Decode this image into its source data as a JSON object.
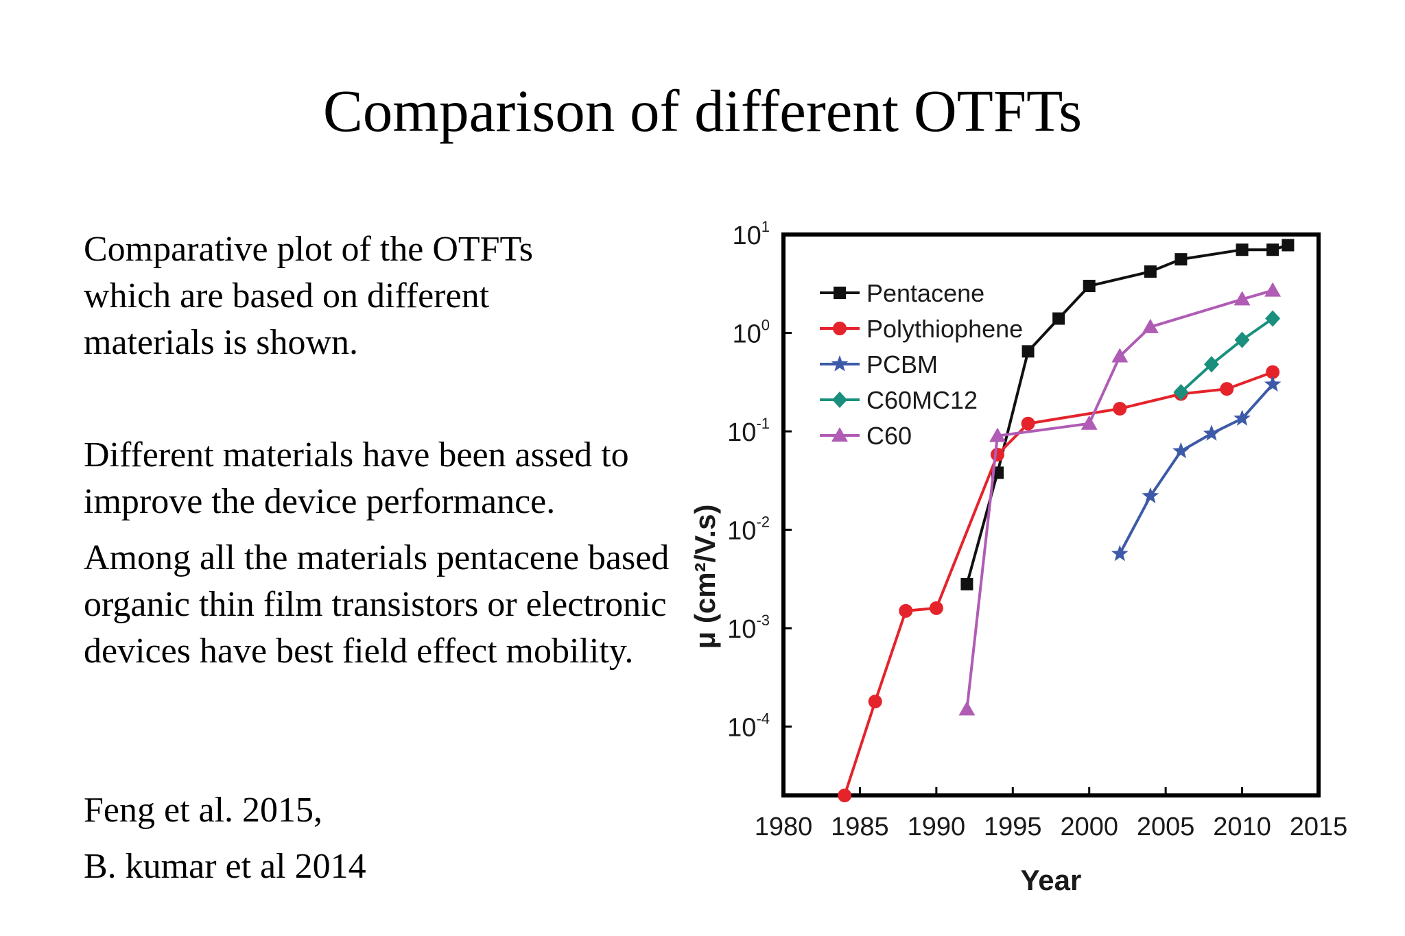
{
  "slide": {
    "title": "Comparison of different OTFTs",
    "paragraph1": "Comparative plot of the OTFTs which are based on different materials is shown.",
    "paragraph2": "Different materials have been assed to improve the device performance.",
    "paragraph3": "Among all the materials pentacene based organic thin film transistors or electronic devices have best field effect mobility.",
    "ref1": "Feng et al. 2015,",
    "ref2": "B. kumar et al 2014"
  },
  "chart_data": {
    "type": "line",
    "xlabel": "Year",
    "ylabel": "μ (cm²/V.s)",
    "xlim": [
      1980,
      2015
    ],
    "ylim": [
      2e-05,
      10
    ],
    "yscale": "log",
    "x_ticks": [
      "1980",
      "1985",
      "1990",
      "1995",
      "2000",
      "2005",
      "2010",
      "2015"
    ],
    "y_ticks": [
      {
        "value": 10,
        "base": "10",
        "exp": "1"
      },
      {
        "value": 1,
        "base": "10",
        "exp": "0"
      },
      {
        "value": 0.1,
        "base": "10",
        "exp": "-1"
      },
      {
        "value": 0.01,
        "base": "10",
        "exp": "-2"
      },
      {
        "value": 0.001,
        "base": "10",
        "exp": "-3"
      },
      {
        "value": 0.0001,
        "base": "10",
        "exp": "-4"
      }
    ],
    "legend_position": "top-left",
    "series": [
      {
        "name": "Pentacene",
        "color": "#111111",
        "marker": "square",
        "points": [
          [
            1992,
            0.0028
          ],
          [
            1994,
            0.038
          ],
          [
            1996,
            0.65
          ],
          [
            1998,
            1.4
          ],
          [
            2000,
            3.0
          ],
          [
            2004,
            4.2
          ],
          [
            2006,
            5.6
          ],
          [
            2010,
            7.0
          ],
          [
            2012,
            7.0
          ],
          [
            2013,
            7.8
          ]
        ]
      },
      {
        "name": "Polythiophene",
        "color": "#e4232b",
        "marker": "circle",
        "points": [
          [
            1984,
            2e-05
          ],
          [
            1986,
            0.00018
          ],
          [
            1988,
            0.0015
          ],
          [
            1990,
            0.0016
          ],
          [
            1994,
            0.058
          ],
          [
            1996,
            0.12
          ],
          [
            2002,
            0.17
          ],
          [
            2006,
            0.24
          ],
          [
            2009,
            0.27
          ],
          [
            2012,
            0.4
          ]
        ]
      },
      {
        "name": "PCBM",
        "color": "#3d5aa8",
        "marker": "star",
        "points": [
          [
            2002,
            0.0057
          ],
          [
            2004,
            0.022
          ],
          [
            2006,
            0.063
          ],
          [
            2008,
            0.095
          ],
          [
            2010,
            0.135
          ],
          [
            2012,
            0.3
          ]
        ]
      },
      {
        "name": "C60MC12",
        "color": "#1a8f7e",
        "marker": "diamond",
        "points": [
          [
            2006,
            0.25
          ],
          [
            2008,
            0.48
          ],
          [
            2010,
            0.85
          ],
          [
            2012,
            1.4
          ]
        ]
      },
      {
        "name": "C60",
        "color": "#b05cb5",
        "marker": "triangle",
        "points": [
          [
            1992,
            0.00015
          ],
          [
            1994,
            0.09
          ],
          [
            2000,
            0.12
          ],
          [
            2002,
            0.58
          ],
          [
            2004,
            1.15
          ],
          [
            2010,
            2.2
          ],
          [
            2012,
            2.7
          ]
        ]
      }
    ]
  }
}
